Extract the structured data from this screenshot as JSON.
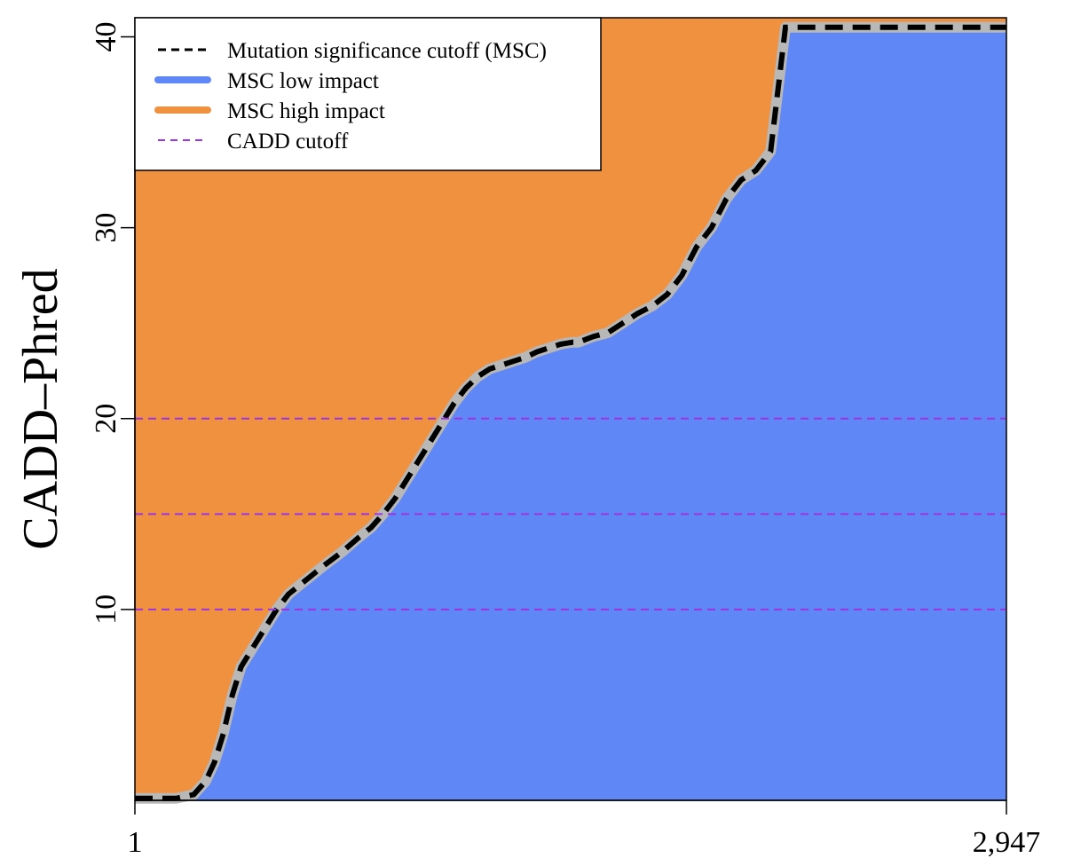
{
  "chart_data": {
    "type": "area",
    "title": "",
    "xlabel": "",
    "ylabel": "CADD–Phred",
    "x_tick_labels": [
      "1",
      "2,947"
    ],
    "xlim": [
      1,
      2947
    ],
    "ylim": [
      0,
      41
    ],
    "y_ticks": [
      10,
      20,
      30,
      40
    ],
    "grid": false,
    "legend_position": "top-left",
    "legend": [
      {
        "label": "Mutation significance cutoff (MSC)",
        "style": "dashed-line",
        "color": "#000000"
      },
      {
        "label": "MSC low impact",
        "style": "solid-line",
        "color": "#5f87f5"
      },
      {
        "label": "MSC high impact",
        "style": "solid-line",
        "color": "#f0913f"
      },
      {
        "label": "CADD cutoff",
        "style": "dashed-line",
        "color": "#9b35e0"
      }
    ],
    "cadd_cutoffs": [
      10,
      15,
      20
    ],
    "series": [
      {
        "name": "Mutation significance cutoff (MSC)",
        "x": [
          1,
          60,
          140,
          200,
          240,
          270,
          300,
          330,
          360,
          400,
          440,
          480,
          520,
          560,
          600,
          640,
          700,
          760,
          800,
          840,
          880,
          920,
          960,
          1000,
          1040,
          1080,
          1120,
          1160,
          1200,
          1240,
          1280,
          1320,
          1360,
          1400,
          1440,
          1480,
          1500,
          1550,
          1600,
          1650,
          1700,
          1750,
          1800,
          1850,
          1900,
          1950,
          2000,
          2050,
          2100,
          2150,
          2200,
          2250,
          2300,
          2350,
          2400,
          2450,
          2500,
          2550,
          2600,
          2650,
          2700,
          2750,
          2800,
          2830,
          2850,
          2870,
          2890,
          2910,
          2920,
          2930,
          2940,
          2947
        ],
        "y": [
          0.1,
          0.1,
          0.1,
          0.3,
          1.0,
          2.0,
          3.5,
          5.5,
          7.0,
          8.0,
          9.0,
          10.0,
          10.8,
          11.3,
          11.8,
          12.3,
          13.0,
          13.8,
          14.3,
          15.0,
          15.8,
          16.8,
          17.8,
          18.8,
          19.8,
          20.8,
          21.6,
          22.2,
          22.6,
          22.8,
          23.0,
          23.2,
          23.5,
          23.7,
          23.9,
          24.0,
          24.0,
          24.3,
          24.5,
          25.0,
          25.5,
          25.9,
          26.5,
          27.5,
          29.0,
          30.0,
          31.5,
          32.5,
          33.0,
          34.0,
          40.5,
          40.5,
          40.5,
          40.5,
          40.5,
          40.5,
          40.5,
          40.5,
          40.5,
          40.5,
          40.5,
          40.5,
          40.5,
          40.5,
          40.5,
          40.5,
          40.5,
          40.5,
          40.5,
          40.5,
          40.5,
          40.5
        ]
      }
    ]
  }
}
